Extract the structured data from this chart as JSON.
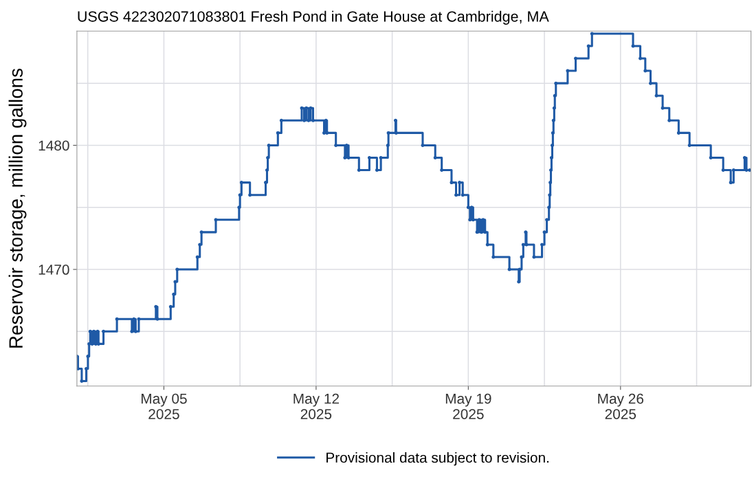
{
  "chart_data": {
    "type": "step",
    "title": "USGS 422302071083801 Fresh Pond in Gate House at Cambridge, MA",
    "ylabel": "Reservoir storage, million gallons",
    "xlim": [
      "2025-05-01T00:00",
      "2025-06-01T00:00"
    ],
    "ylim": [
      1460.6,
      1489.2
    ],
    "xticks": [
      {
        "value": "2025-05-01T12:00",
        "label": null
      },
      {
        "value": "2025-05-05",
        "label": "May 05\n2025"
      },
      {
        "value": "2025-05-08T12:00",
        "label": null
      },
      {
        "value": "2025-05-12",
        "label": "May 12\n2025"
      },
      {
        "value": "2025-05-15T12:00",
        "label": null
      },
      {
        "value": "2025-05-19",
        "label": "May 19\n2025"
      },
      {
        "value": "2025-05-22T12:00",
        "label": null
      },
      {
        "value": "2025-05-26",
        "label": "May 26\n2025"
      },
      {
        "value": "2025-05-29T12:00",
        "label": null
      }
    ],
    "yticks": [
      {
        "value": 1465,
        "label": null
      },
      1470,
      {
        "value": 1475,
        "label": null
      },
      1480,
      {
        "value": 1485,
        "label": null
      }
    ],
    "grid": true,
    "legend": "bottom",
    "marker": "circle",
    "line_style": "solid",
    "series": [
      {
        "name": "Provisional data subject to revision.",
        "color": "#1f5aa6",
        "x": [
          "2025-05-01T00:00",
          "2025-05-01T01:10",
          "2025-05-01T05:20",
          "2025-05-01T10:20",
          "2025-05-01T12:10",
          "2025-05-01T13:30",
          "2025-05-01T14:40",
          "2025-05-01T16:50",
          "2025-05-01T18:40",
          "2025-05-01T20:50",
          "2025-05-01T22:50",
          "2025-05-01T23:50",
          "2025-05-02T05:20",
          "2025-05-02T20:10",
          "2025-05-03T12:40",
          "2025-05-03T14:50",
          "2025-05-03T16:50",
          "2025-05-03T20:20",
          "2025-05-04T15:10",
          "2025-05-04T16:50",
          "2025-05-05T07:30",
          "2025-05-05T10:50",
          "2025-05-05T12:30",
          "2025-05-05T14:40",
          "2025-05-06T13:00",
          "2025-05-06T15:40",
          "2025-05-06T17:30",
          "2025-05-07T09:20",
          "2025-05-08T11:00",
          "2025-05-08T12:00",
          "2025-05-08T13:40",
          "2025-05-08T23:00",
          "2025-05-09T16:20",
          "2025-05-09T17:50",
          "2025-05-09T18:40",
          "2025-05-09T19:50",
          "2025-05-10T05:50",
          "2025-05-10T09:40",
          "2025-05-11T08:10",
          "2025-05-11T10:50",
          "2025-05-11T13:10",
          "2025-05-11T15:40",
          "2025-05-11T18:00",
          "2025-05-11T20:40",
          "2025-05-12T08:50",
          "2025-05-12T10:50",
          "2025-05-12T12:00",
          "2025-05-12T21:50",
          "2025-05-13T07:50",
          "2025-05-13T09:40",
          "2025-05-13T11:50",
          "2025-05-13T23:20",
          "2025-05-14T10:50",
          "2025-05-14T19:10",
          "2025-05-14T23:30",
          "2025-05-15T07:10",
          "2025-05-15T07:50",
          "2025-05-15T15:40",
          "2025-05-15T16:20",
          "2025-05-16T21:40",
          "2025-05-17T11:30",
          "2025-05-17T18:40",
          "2025-05-18T05:30",
          "2025-05-18T10:30",
          "2025-05-18T14:20",
          "2025-05-18T17:50",
          "2025-05-19T00:00",
          "2025-05-19T01:50",
          "2025-05-19T03:40",
          "2025-05-19T05:20",
          "2025-05-19T09:40",
          "2025-05-19T12:00",
          "2025-05-19T14:20",
          "2025-05-19T16:20",
          "2025-05-19T18:30",
          "2025-05-19T21:10",
          "2025-05-20T03:40",
          "2025-05-20T21:20",
          "2025-05-21T07:40",
          "2025-05-21T08:40",
          "2025-05-21T10:50",
          "2025-05-21T12:40",
          "2025-05-21T15:20",
          "2025-05-21T16:10",
          "2025-05-22T00:30",
          "2025-05-22T09:20",
          "2025-05-22T12:00",
          "2025-05-22T14:40",
          "2025-05-22T17:00",
          "2025-05-22T17:50",
          "2025-05-22T18:30",
          "2025-05-22T19:10",
          "2025-05-22T19:50",
          "2025-05-22T20:40",
          "2025-05-22T21:20",
          "2025-05-22T22:00",
          "2025-05-22T22:50",
          "2025-05-22T23:30",
          "2025-05-23T00:40",
          "2025-05-23T13:40",
          "2025-05-23T22:30",
          "2025-05-24T12:40",
          "2025-05-24T16:30",
          "2025-05-26T13:50",
          "2025-05-26T21:50",
          "2025-05-27T03:20",
          "2025-05-27T09:10",
          "2025-05-27T15:40",
          "2025-05-27T22:30",
          "2025-05-28T05:50",
          "2025-05-28T16:10",
          "2025-05-29T04:10",
          "2025-05-30T03:40",
          "2025-05-30T17:20",
          "2025-05-31T01:40",
          "2025-05-31T04:50",
          "2025-05-31T17:00",
          "2025-05-31T19:00",
          "2025-05-31T22:30"
        ],
        "values": [
          1463,
          1462,
          1461,
          1462,
          1463,
          1464,
          1465,
          1464,
          1465,
          1464,
          1465,
          1464,
          1465,
          1466,
          1465,
          1466,
          1465,
          1466,
          1467,
          1466,
          1467,
          1468,
          1469,
          1470,
          1471,
          1472,
          1473,
          1474,
          1475,
          1476,
          1477,
          1476,
          1477,
          1478,
          1479,
          1480,
          1481,
          1482,
          1483,
          1482,
          1483,
          1482,
          1483,
          1482,
          1481,
          1482,
          1481,
          1480,
          1479,
          1480,
          1479,
          1478,
          1479,
          1478,
          1479,
          1480,
          1481,
          1482,
          1481,
          1480,
          1479,
          1478,
          1477,
          1476,
          1477,
          1476,
          1475,
          1474,
          1475,
          1474,
          1473,
          1474,
          1473,
          1474,
          1473,
          1472,
          1471,
          1470,
          1469,
          1470,
          1471,
          1472,
          1473,
          1472,
          1471,
          1472,
          1473,
          1474,
          1475,
          1476,
          1477,
          1478,
          1479,
          1480,
          1481,
          1482,
          1483,
          1484,
          1485,
          1486,
          1487,
          1488,
          1489,
          1488,
          1487,
          1486,
          1485,
          1484,
          1483,
          1482,
          1481,
          1480,
          1479,
          1478,
          1477,
          1478,
          1479,
          1478,
          1478
        ]
      }
    ]
  }
}
